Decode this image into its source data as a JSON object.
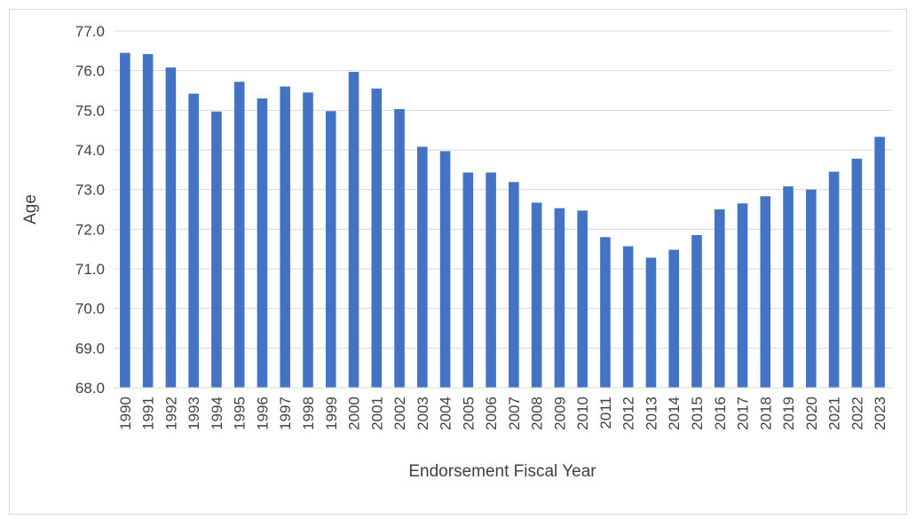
{
  "chart_data": {
    "type": "bar",
    "title": "",
    "xlabel": "Endorsement Fiscal Year",
    "ylabel": "Age",
    "ylim": [
      68.0,
      77.0
    ],
    "y_ticks": [
      68.0,
      69.0,
      70.0,
      71.0,
      72.0,
      73.0,
      74.0,
      75.0,
      76.0,
      77.0
    ],
    "grid": true,
    "legend": "none",
    "bar_color": "#4472c4",
    "gridline_color": "#d9d9d9",
    "categories": [
      "1990",
      "1991",
      "1992",
      "1993",
      "1994",
      "1995",
      "1996",
      "1997",
      "1998",
      "1999",
      "2000",
      "2001",
      "2002",
      "2003",
      "2004",
      "2005",
      "2006",
      "2007",
      "2008",
      "2009",
      "2010",
      "2011",
      "2012",
      "2013",
      "2014",
      "2015",
      "2016",
      "2017",
      "2018",
      "2019",
      "2020",
      "2021",
      "2022",
      "2023"
    ],
    "values": [
      76.45,
      76.42,
      76.08,
      75.42,
      74.97,
      75.72,
      75.3,
      75.6,
      75.45,
      74.98,
      75.97,
      75.55,
      75.03,
      74.08,
      73.97,
      73.43,
      73.43,
      73.19,
      72.67,
      72.53,
      72.47,
      71.8,
      71.57,
      71.28,
      71.48,
      71.85,
      72.5,
      72.65,
      72.83,
      73.08,
      73.0,
      73.45,
      73.78,
      74.33
    ]
  }
}
